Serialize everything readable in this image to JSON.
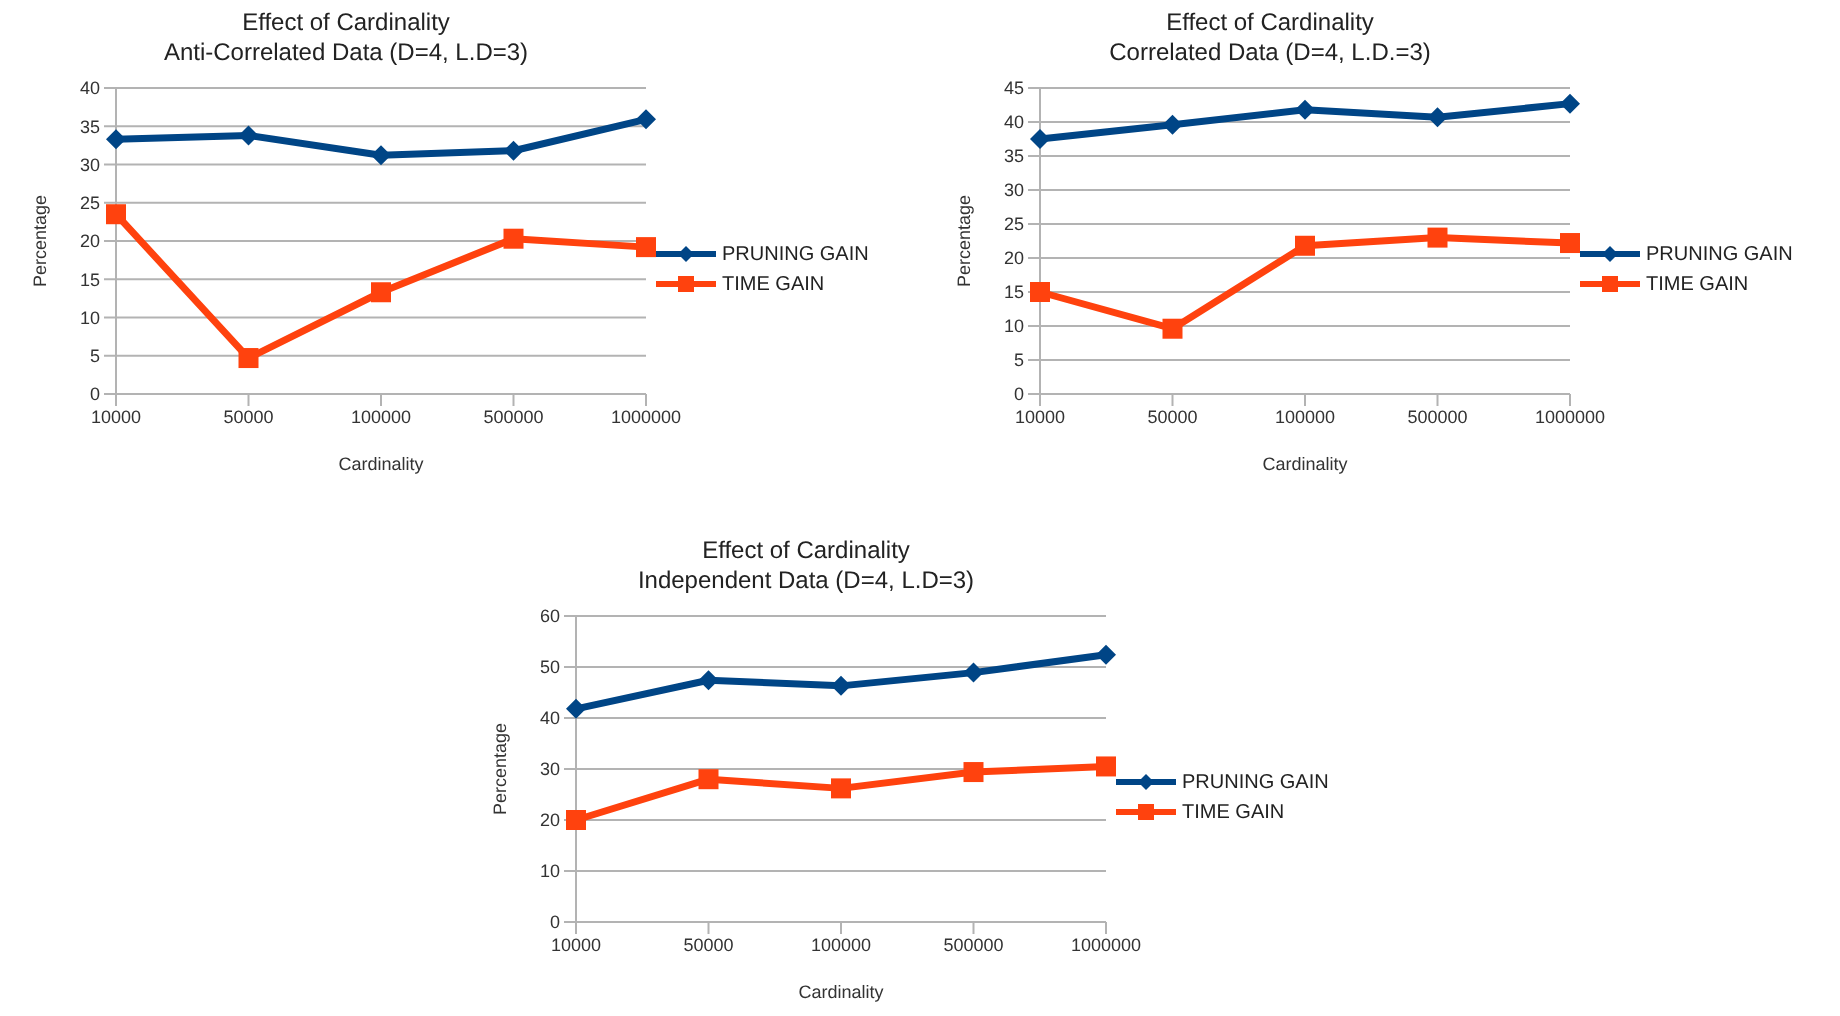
{
  "chart_data": [
    {
      "type": "line",
      "title": "Effect of Cardinality",
      "subtitle": "Anti-Correlated Data (D=4, L.D=3)",
      "xlabel": "Cardinality",
      "ylabel": "Percentage",
      "categories": [
        "10000",
        "50000",
        "100000",
        "500000",
        "1000000"
      ],
      "ylim": [
        0,
        40
      ],
      "yticks": [
        0,
        5,
        10,
        15,
        20,
        25,
        30,
        35,
        40
      ],
      "grid": "y",
      "legend": "right",
      "series": [
        {
          "name": "PRUNING GAIN",
          "color": "#004586",
          "marker": "diamond",
          "values": [
            33.3,
            33.8,
            31.2,
            31.8,
            35.9
          ]
        },
        {
          "name": "TIME GAIN",
          "color": "#ff420e",
          "marker": "square",
          "values": [
            23.5,
            4.7,
            13.3,
            20.3,
            19.2
          ]
        }
      ]
    },
    {
      "type": "line",
      "title": "Effect of Cardinality",
      "subtitle": "Correlated Data (D=4, L.D.=3)",
      "xlabel": "Cardinality",
      "ylabel": "Percentage",
      "categories": [
        "10000",
        "50000",
        "100000",
        "500000",
        "1000000"
      ],
      "ylim": [
        0,
        45
      ],
      "yticks": [
        0,
        5,
        10,
        15,
        20,
        25,
        30,
        35,
        40,
        45
      ],
      "grid": "y",
      "legend": "right",
      "series": [
        {
          "name": "PRUNING GAIN",
          "color": "#004586",
          "marker": "diamond",
          "values": [
            37.5,
            39.6,
            41.8,
            40.7,
            42.7
          ]
        },
        {
          "name": "TIME GAIN",
          "color": "#ff420e",
          "marker": "square",
          "values": [
            15,
            9.6,
            21.8,
            23,
            22.2
          ]
        }
      ]
    },
    {
      "type": "line",
      "title": "Effect of Cardinality",
      "subtitle": "Independent Data (D=4, L.D=3)",
      "xlabel": "Cardinality",
      "ylabel": "Percentage",
      "categories": [
        "10000",
        "50000",
        "100000",
        "500000",
        "1000000"
      ],
      "ylim": [
        0,
        60
      ],
      "yticks": [
        0,
        10,
        20,
        30,
        40,
        50,
        60
      ],
      "grid": "y",
      "legend": "right",
      "series": [
        {
          "name": "PRUNING GAIN",
          "color": "#004586",
          "marker": "diamond",
          "values": [
            41.8,
            47.4,
            46.3,
            48.9,
            52.4
          ]
        },
        {
          "name": "TIME GAIN",
          "color": "#ff420e",
          "marker": "square",
          "values": [
            20,
            28,
            26.2,
            29.4,
            30.5
          ]
        }
      ]
    }
  ]
}
